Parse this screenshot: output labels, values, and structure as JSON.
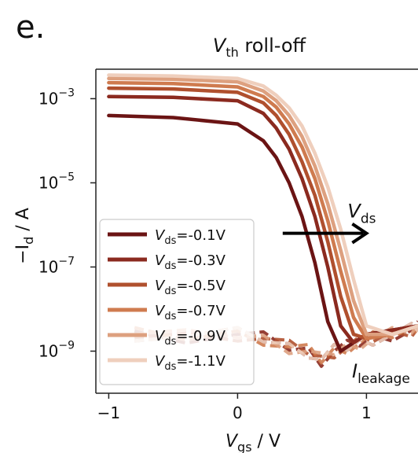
{
  "panel_label": "e.",
  "chart_data": {
    "type": "line",
    "title": "V_th roll-off",
    "title_main": "V",
    "title_sub": "th",
    "title_rest": " roll-off",
    "xlabel_main": "V",
    "xlabel_sub": "gs",
    "xlabel_rest": " / V",
    "ylabel_prefix": "−I",
    "ylabel_sub": "d",
    "ylabel_rest": " / A",
    "xlim": [
      -1.1,
      1.4
    ],
    "ylim_log10": [
      -10,
      -2.3
    ],
    "y_scale": "log",
    "xticks": [
      {
        "value": -1,
        "label": "−1"
      },
      {
        "value": 0,
        "label": "0"
      },
      {
        "value": 1,
        "label": "1"
      }
    ],
    "yticks": [
      {
        "value": -3,
        "base": "10",
        "exp": "−3"
      },
      {
        "value": -5,
        "base": "10",
        "exp": "−5"
      },
      {
        "value": -7,
        "base": "10",
        "exp": "−7"
      },
      {
        "value": -9,
        "base": "10",
        "exp": "−9"
      }
    ],
    "legend_position": "lower-left",
    "grid": false,
    "series": [
      {
        "name": "V_ds=-0.1V",
        "label_main": "V",
        "label_sub": "ds",
        "label_rest": "=-0.1V",
        "color": "#6b1414",
        "x": [
          -1,
          -0.5,
          0,
          0.2,
          0.3,
          0.4,
          0.5,
          0.6,
          0.7,
          0.8,
          0.9,
          1,
          1.2,
          1.4
        ],
        "log10_current": [
          -3.4,
          -3.45,
          -3.6,
          -4.0,
          -4.4,
          -5.0,
          -5.8,
          -6.9,
          -8.3,
          -9.0,
          -8.8,
          -8.6,
          -8.5,
          -8.4
        ]
      },
      {
        "name": "V_ds=-0.3V",
        "label_main": "V",
        "label_sub": "ds",
        "label_rest": "=-0.3V",
        "color": "#8b2a1f",
        "x": [
          -1,
          -0.5,
          0,
          0.2,
          0.3,
          0.4,
          0.5,
          0.6,
          0.7,
          0.8,
          0.9,
          1,
          1.2,
          1.4
        ],
        "log10_current": [
          -2.95,
          -2.97,
          -3.05,
          -3.35,
          -3.7,
          -4.2,
          -4.9,
          -5.8,
          -7.0,
          -8.4,
          -8.8,
          -8.6,
          -8.5,
          -8.4
        ]
      },
      {
        "name": "V_ds=-0.5V",
        "label_main": "V",
        "label_sub": "ds",
        "label_rest": "=-0.5V",
        "color": "#b0502e",
        "x": [
          -1,
          -0.5,
          0,
          0.2,
          0.3,
          0.4,
          0.5,
          0.6,
          0.7,
          0.8,
          0.9,
          1,
          1.2,
          1.4
        ],
        "log10_current": [
          -2.75,
          -2.77,
          -2.85,
          -3.1,
          -3.4,
          -3.85,
          -4.5,
          -5.3,
          -6.4,
          -7.7,
          -8.6,
          -8.7,
          -8.6,
          -8.4
        ]
      },
      {
        "name": "V_ds=-0.7V",
        "label_main": "V",
        "label_sub": "ds",
        "label_rest": "=-0.7V",
        "color": "#cf7b4f",
        "x": [
          -1,
          -0.5,
          0,
          0.2,
          0.3,
          0.4,
          0.5,
          0.6,
          0.7,
          0.8,
          0.9,
          1,
          1.2,
          1.4
        ],
        "log10_current": [
          -2.62,
          -2.64,
          -2.72,
          -2.95,
          -3.2,
          -3.6,
          -4.15,
          -4.9,
          -5.9,
          -7.1,
          -8.2,
          -8.7,
          -8.6,
          -8.4
        ]
      },
      {
        "name": "V_ds=-0.9V",
        "label_main": "V",
        "label_sub": "ds",
        "label_rest": "=-0.9V",
        "color": "#dda07f",
        "x": [
          -1,
          -0.5,
          0,
          0.2,
          0.3,
          0.4,
          0.5,
          0.6,
          0.7,
          0.8,
          0.9,
          1,
          1.2,
          1.4
        ],
        "log10_current": [
          -2.52,
          -2.54,
          -2.6,
          -2.82,
          -3.05,
          -3.4,
          -3.9,
          -4.6,
          -5.5,
          -6.6,
          -7.8,
          -8.6,
          -8.6,
          -8.4
        ]
      },
      {
        "name": "V_ds=-1.1V",
        "label_main": "V",
        "label_sub": "ds",
        "label_rest": "=-1.1V",
        "color": "#efcfbd",
        "x": [
          -1,
          -0.5,
          0,
          0.2,
          0.3,
          0.4,
          0.5,
          0.6,
          0.7,
          0.8,
          0.9,
          1,
          1.2,
          1.4
        ],
        "log10_current": [
          -2.44,
          -2.46,
          -2.52,
          -2.7,
          -2.92,
          -3.22,
          -3.65,
          -4.3,
          -5.1,
          -6.1,
          -7.3,
          -8.4,
          -8.6,
          -8.4
        ]
      }
    ],
    "leakage": {
      "x": [
        -0.8,
        -0.4,
        0,
        0.2,
        0.4,
        0.55,
        0.65,
        0.75,
        0.85,
        0.95,
        1.05,
        1.2,
        1.35,
        1.4
      ],
      "log10_current": [
        -8.6,
        -8.65,
        -8.6,
        -8.7,
        -8.9,
        -9.0,
        -9.2,
        -9.0,
        -8.9,
        -8.8,
        -8.7,
        -8.6,
        -8.5,
        -8.45
      ],
      "label_main": "I",
      "label_sub": "leakage"
    },
    "arrow_annotation": {
      "label_main": "V",
      "label_sub": "ds",
      "x_from": 0.35,
      "x_to": 1.0,
      "log10_at": -6.2
    }
  }
}
